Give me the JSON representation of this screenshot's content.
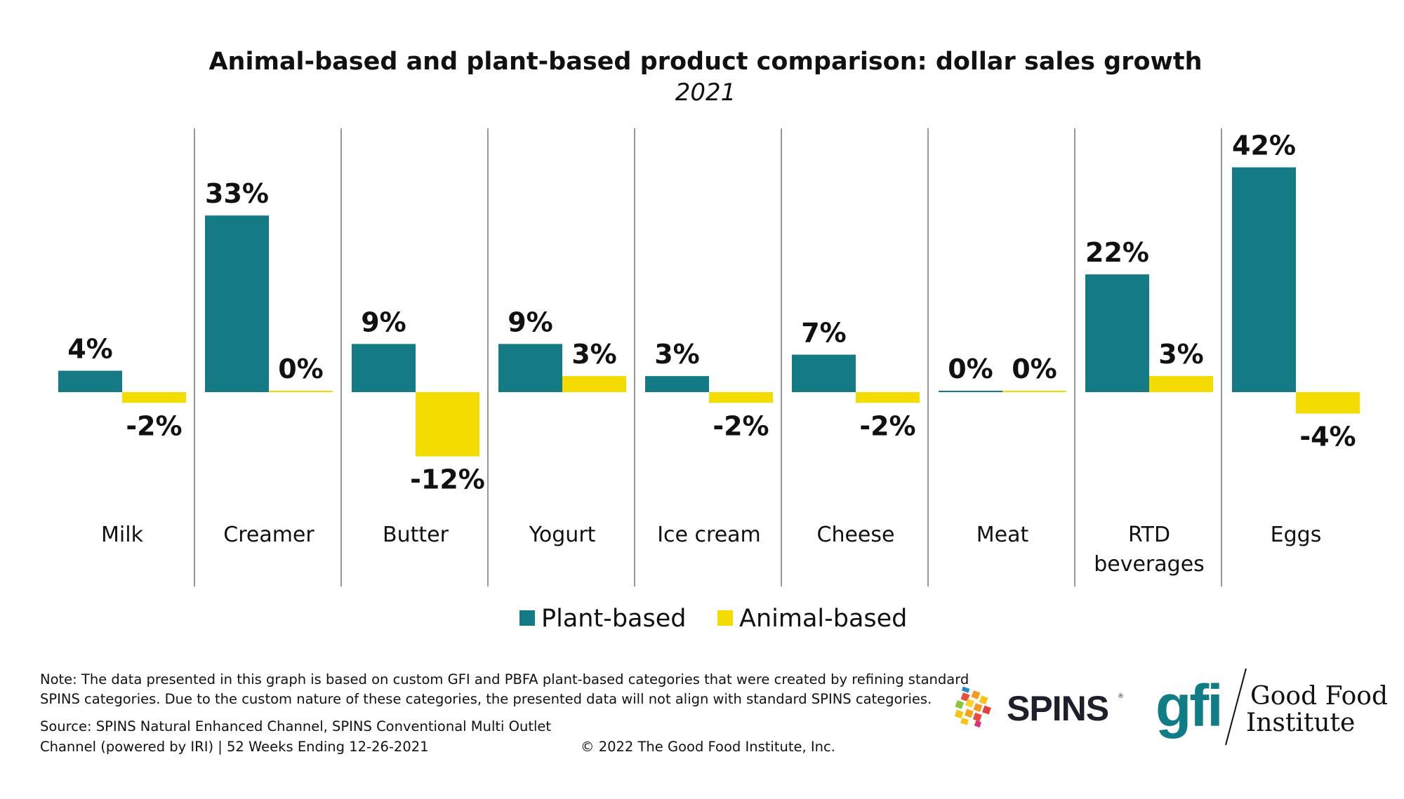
{
  "chart_data": {
    "type": "bar",
    "title": "Animal-based and plant-based product comparison: dollar sales growth",
    "subtitle": "2021",
    "categories": [
      "Milk",
      "Creamer",
      "Butter",
      "Yogurt",
      "Ice cream",
      "Cheese",
      "Meat",
      "RTD beverages",
      "Eggs"
    ],
    "series": [
      {
        "name": "Plant-based",
        "color": "#147b85",
        "values": [
          4,
          33,
          9,
          9,
          3,
          7,
          0,
          22,
          42
        ]
      },
      {
        "name": "Animal-based",
        "color": "#f5dc00",
        "values": [
          -2,
          0,
          -12,
          3,
          -2,
          -2,
          0,
          3,
          -4
        ]
      }
    ],
    "value_suffix": "%",
    "ylim": [
      -15,
      45
    ],
    "grid": false,
    "legend": "bottom"
  },
  "footer": {
    "note_line1": "Note: The data presented in this graph is based on custom GFI and PBFA plant-based categories that were created by refining standard",
    "note_line2": "SPINS categories. Due to the custom nature of these categories, the presented data will not align with standard SPINS categories.",
    "source_line1": "Source: SPINS Natural Enhanced Channel, SPINS Conventional Multi Outlet",
    "source_line2": "Channel (powered by IRI) | 52 Weeks Ending 12-26-2021",
    "copyright": "© 2022 The Good Food Institute, Inc."
  },
  "logos": {
    "spins": "SPINS",
    "gfi": "gfi",
    "gfi_name_line1": "Good Food",
    "gfi_name_line2": "Institute"
  }
}
